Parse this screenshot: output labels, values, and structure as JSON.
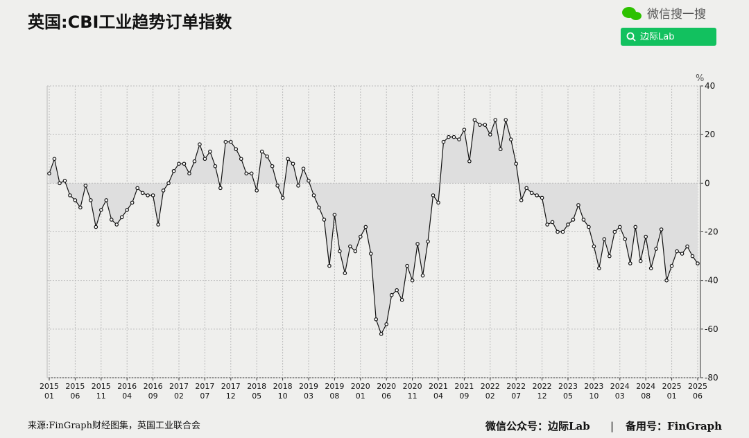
{
  "chart_data": {
    "type": "line",
    "title": "英国:CBI工业趋势订单指数",
    "unit": "%",
    "source": "来源:FinGraph财经图集，英国工业联合会",
    "color": "#111111",
    "area_color": "#dedede",
    "grid": true,
    "x": [
      "2015-01",
      "2015-02",
      "2015-03",
      "2015-04",
      "2015-05",
      "2015-06",
      "2015-07",
      "2015-08",
      "2015-09",
      "2015-10",
      "2015-11",
      "2015-12",
      "2016-01",
      "2016-02",
      "2016-03",
      "2016-04",
      "2016-05",
      "2016-06",
      "2016-07",
      "2016-08",
      "2016-09",
      "2016-10",
      "2016-11",
      "2016-12",
      "2017-01",
      "2017-02",
      "2017-03",
      "2017-04",
      "2017-05",
      "2017-06",
      "2017-07",
      "2017-08",
      "2017-09",
      "2017-10",
      "2017-11",
      "2017-12",
      "2018-01",
      "2018-02",
      "2018-03",
      "2018-04",
      "2018-05",
      "2018-06",
      "2018-07",
      "2018-08",
      "2018-09",
      "2018-10",
      "2018-11",
      "2018-12",
      "2019-01",
      "2019-02",
      "2019-03",
      "2019-04",
      "2019-05",
      "2019-06",
      "2019-07",
      "2019-08",
      "2019-09",
      "2019-10",
      "2019-11",
      "2019-12",
      "2020-01",
      "2020-02",
      "2020-03",
      "2020-04",
      "2020-05",
      "2020-06",
      "2020-07",
      "2020-08",
      "2020-09",
      "2020-10",
      "2020-11",
      "2020-12",
      "2021-01",
      "2021-02",
      "2021-03",
      "2021-04",
      "2021-05",
      "2021-06",
      "2021-07",
      "2021-08",
      "2021-09",
      "2021-10",
      "2021-11",
      "2021-12",
      "2022-01",
      "2022-02",
      "2022-03",
      "2022-04",
      "2022-05",
      "2022-06",
      "2022-07",
      "2022-08",
      "2022-09",
      "2022-10",
      "2022-11",
      "2022-12",
      "2023-01",
      "2023-02",
      "2023-03",
      "2023-04",
      "2023-05",
      "2023-06",
      "2023-07",
      "2023-08",
      "2023-09",
      "2023-10",
      "2023-11",
      "2023-12",
      "2024-01",
      "2024-02",
      "2024-03",
      "2024-04",
      "2024-05",
      "2024-06",
      "2024-07",
      "2024-08",
      "2024-09",
      "2024-10",
      "2024-11",
      "2024-12",
      "2025-01",
      "2025-02",
      "2025-03",
      "2025-04",
      "2025-05",
      "2025-06"
    ],
    "values": [
      4,
      10,
      0,
      1,
      -5,
      -7,
      -10,
      -1,
      -7,
      -18,
      -11,
      -7,
      -15,
      -17,
      -14,
      -11,
      -8,
      -2,
      -4,
      -5,
      -5,
      -17,
      -3,
      0,
      5,
      8,
      8,
      4,
      9,
      16,
      10,
      13,
      7,
      -2,
      17,
      17,
      14,
      10,
      4,
      4,
      -3,
      13,
      11,
      7,
      -1,
      -6,
      10,
      8,
      -1,
      6,
      1,
      -5,
      -10,
      -15,
      -34,
      -13,
      -28,
      -37,
      -26,
      -28,
      -22,
      -18,
      -29,
      -56,
      -62,
      -58,
      -46,
      -44,
      -48,
      -34,
      -40,
      -25,
      -38,
      -24,
      -5,
      -8,
      17,
      19,
      19,
      18,
      22,
      9,
      26,
      24,
      24,
      20,
      26,
      14,
      26,
      18,
      8,
      -7,
      -2,
      -4,
      -5,
      -6,
      -17,
      -16,
      -20,
      -20,
      -17,
      -15,
      -9,
      -15,
      -18,
      -26,
      -35,
      -23,
      -30,
      -20,
      -18,
      -23,
      -33,
      -18,
      -32,
      -22,
      -35,
      -27,
      -19,
      -40,
      -34,
      -28,
      -29,
      -26,
      -30,
      -33
    ],
    "ylim": [
      -80,
      40
    ],
    "yticks": [
      -80,
      -60,
      -40,
      -20,
      0,
      20,
      40
    ],
    "xticks": [
      {
        "value": "2015-01",
        "label": [
          "2015",
          "01"
        ]
      },
      {
        "value": "2015-06",
        "label": [
          "2015",
          "06"
        ]
      },
      {
        "value": "2015-11",
        "label": [
          "2015",
          "11"
        ]
      },
      {
        "value": "2016-04",
        "label": [
          "2016",
          "04"
        ]
      },
      {
        "value": "2016-09",
        "label": [
          "2016",
          "09"
        ]
      },
      {
        "value": "2017-02",
        "label": [
          "2017",
          "02"
        ]
      },
      {
        "value": "2017-07",
        "label": [
          "2017",
          "07"
        ]
      },
      {
        "value": "2017-12",
        "label": [
          "2017",
          "12"
        ]
      },
      {
        "value": "2018-05",
        "label": [
          "2018",
          "05"
        ]
      },
      {
        "value": "2018-10",
        "label": [
          "2018",
          "10"
        ]
      },
      {
        "value": "2019-03",
        "label": [
          "2019",
          "03"
        ]
      },
      {
        "value": "2019-08",
        "label": [
          "2019",
          "08"
        ]
      },
      {
        "value": "2020-01",
        "label": [
          "2020",
          "01"
        ]
      },
      {
        "value": "2020-06",
        "label": [
          "2020",
          "06"
        ]
      },
      {
        "value": "2020-11",
        "label": [
          "2020",
          "11"
        ]
      },
      {
        "value": "2021-04",
        "label": [
          "2021",
          "04"
        ]
      },
      {
        "value": "2021-09",
        "label": [
          "2021",
          "09"
        ]
      },
      {
        "value": "2022-02",
        "label": [
          "2022",
          "02"
        ]
      },
      {
        "value": "2022-07",
        "label": [
          "2022",
          "07"
        ]
      },
      {
        "value": "2022-12",
        "label": [
          "2022",
          "12"
        ]
      },
      {
        "value": "2023-05",
        "label": [
          "2023",
          "05"
        ]
      },
      {
        "value": "2023-10",
        "label": [
          "2023",
          "10"
        ]
      },
      {
        "value": "2024-03",
        "label": [
          "2024",
          "03"
        ]
      },
      {
        "value": "2024-08",
        "label": [
          "2024",
          "08"
        ]
      },
      {
        "value": "2025-01",
        "label": [
          "2025",
          "01"
        ]
      },
      {
        "value": "2025-06",
        "label": [
          "2025",
          "06"
        ]
      }
    ]
  },
  "search_brand": "微信搜一搜",
  "search_button": "边际Lab",
  "footer": {
    "account": "微信公众号：边际Lab",
    "separator": "|",
    "backup": "备用号：FinGraph"
  }
}
